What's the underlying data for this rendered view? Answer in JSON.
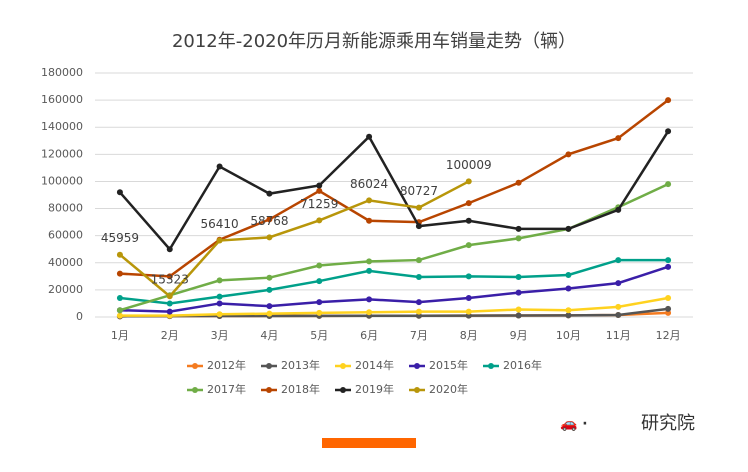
{
  "chart_data": {
    "type": "line",
    "title": "2012年-2020年历月新能源乘用车销量走势（辆）",
    "categories": [
      "1月",
      "2月",
      "3月",
      "4月",
      "5月",
      "6月",
      "7月",
      "8月",
      "9月",
      "10月",
      "11月",
      "12月"
    ],
    "ylim": [
      0,
      180000
    ],
    "yticks": [
      0,
      20000,
      40000,
      60000,
      80000,
      100000,
      120000,
      140000,
      160000,
      180000
    ],
    "grid": true,
    "series": [
      {
        "name": "2012年",
        "color": "#f47b20",
        "values": [
          500,
          600,
          700,
          800,
          800,
          900,
          900,
          1000,
          1100,
          1200,
          1500,
          3000
        ]
      },
      {
        "name": "2013年",
        "color": "#555555",
        "values": [
          500,
          600,
          700,
          700,
          800,
          900,
          900,
          1000,
          1100,
          1200,
          1500,
          6000
        ]
      },
      {
        "name": "2014年",
        "color": "#ffd21f",
        "values": [
          1000,
          1000,
          2000,
          2500,
          3000,
          3500,
          4000,
          4000,
          5500,
          5000,
          7500,
          14000
        ]
      },
      {
        "name": "2015年",
        "color": "#3a1fa8",
        "values": [
          5000,
          4000,
          10000,
          8000,
          11000,
          13000,
          11000,
          14000,
          18000,
          21000,
          25000,
          37000
        ]
      },
      {
        "name": "2016年",
        "color": "#00a08a",
        "values": [
          14000,
          10000,
          15000,
          20000,
          26500,
          34000,
          29500,
          30000,
          29500,
          31000,
          42000,
          42000
        ]
      },
      {
        "name": "2017年",
        "color": "#70ad47",
        "values": [
          5000,
          16000,
          27000,
          29000,
          38000,
          41000,
          42000,
          53000,
          58000,
          65000,
          81000,
          98000
        ]
      },
      {
        "name": "2018年",
        "color": "#b84500",
        "values": [
          32000,
          30000,
          57000,
          72000,
          93000,
          71000,
          70000,
          84000,
          99000,
          120000,
          132000,
          160000
        ]
      },
      {
        "name": "2019年",
        "color": "#222222",
        "values": [
          92000,
          50000,
          111000,
          91000,
          97000,
          133000,
          67000,
          71000,
          65000,
          65000,
          79000,
          137000
        ]
      },
      {
        "name": "2020年",
        "color": "#b8960a",
        "values": [
          45959,
          15323,
          56410,
          58768,
          71259,
          86024,
          80727,
          100009,
          null,
          null,
          null,
          null
        ],
        "show_labels": true
      }
    ]
  },
  "brand": "研究院"
}
